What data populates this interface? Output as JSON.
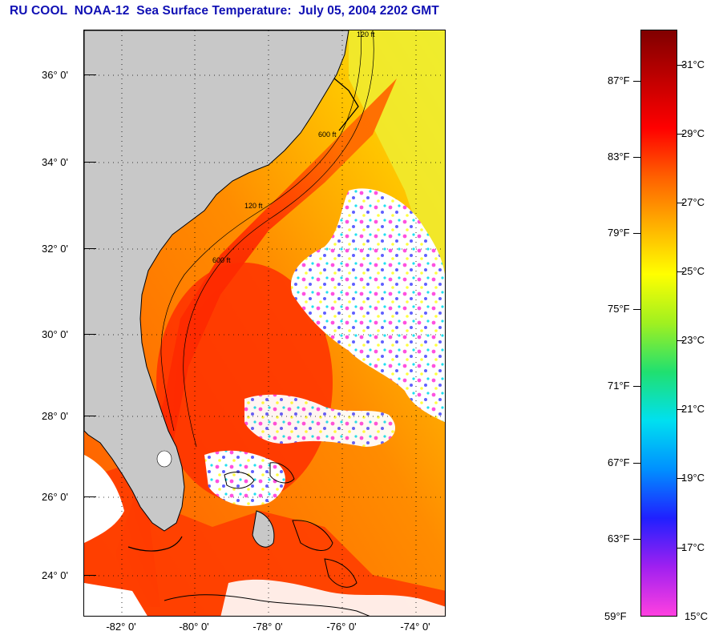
{
  "header": {
    "title": "RU COOL  NOAA-12  Sea Surface Temperature:  July 05, 2004 2202 GMT"
  },
  "map": {
    "latitude_labels": [
      "36° 0'",
      "34° 0'",
      "32° 0'",
      "30° 0'",
      "28° 0'",
      "26° 0'",
      "24° 0'"
    ],
    "longitude_labels": [
      "-82° 0'",
      "-80° 0'",
      "-78° 0'",
      "-76° 0'",
      "-74° 0'"
    ],
    "depth_contour_labels": [
      "120 ft",
      "600 ft"
    ],
    "colors": {
      "land": "#c8c8c8",
      "cloud": "#ffffff",
      "warm_water": "#ff2a00",
      "mid_water": "#ff8a00",
      "cool_water": "#f0ee20",
      "coastline": "#000000"
    }
  },
  "colorbar": {
    "fahrenheit_labels": [
      "87°F",
      "83°F",
      "79°F",
      "75°F",
      "71°F",
      "67°F",
      "63°F",
      "59°F"
    ],
    "celsius_labels": [
      "31°C",
      "29°C",
      "27°C",
      "25°C",
      "23°C",
      "21°C",
      "19°C",
      "17°C",
      "15°C"
    ],
    "range_celsius": [
      15,
      32
    ],
    "gradient_stops": [
      "#ff40e0",
      "#a020f0",
      "#2020ff",
      "#0090ff",
      "#00e0f0",
      "#20e070",
      "#a0f020",
      "#ffff00",
      "#ffb000",
      "#ff6000",
      "#ff0000",
      "#c00000",
      "#800000"
    ]
  }
}
